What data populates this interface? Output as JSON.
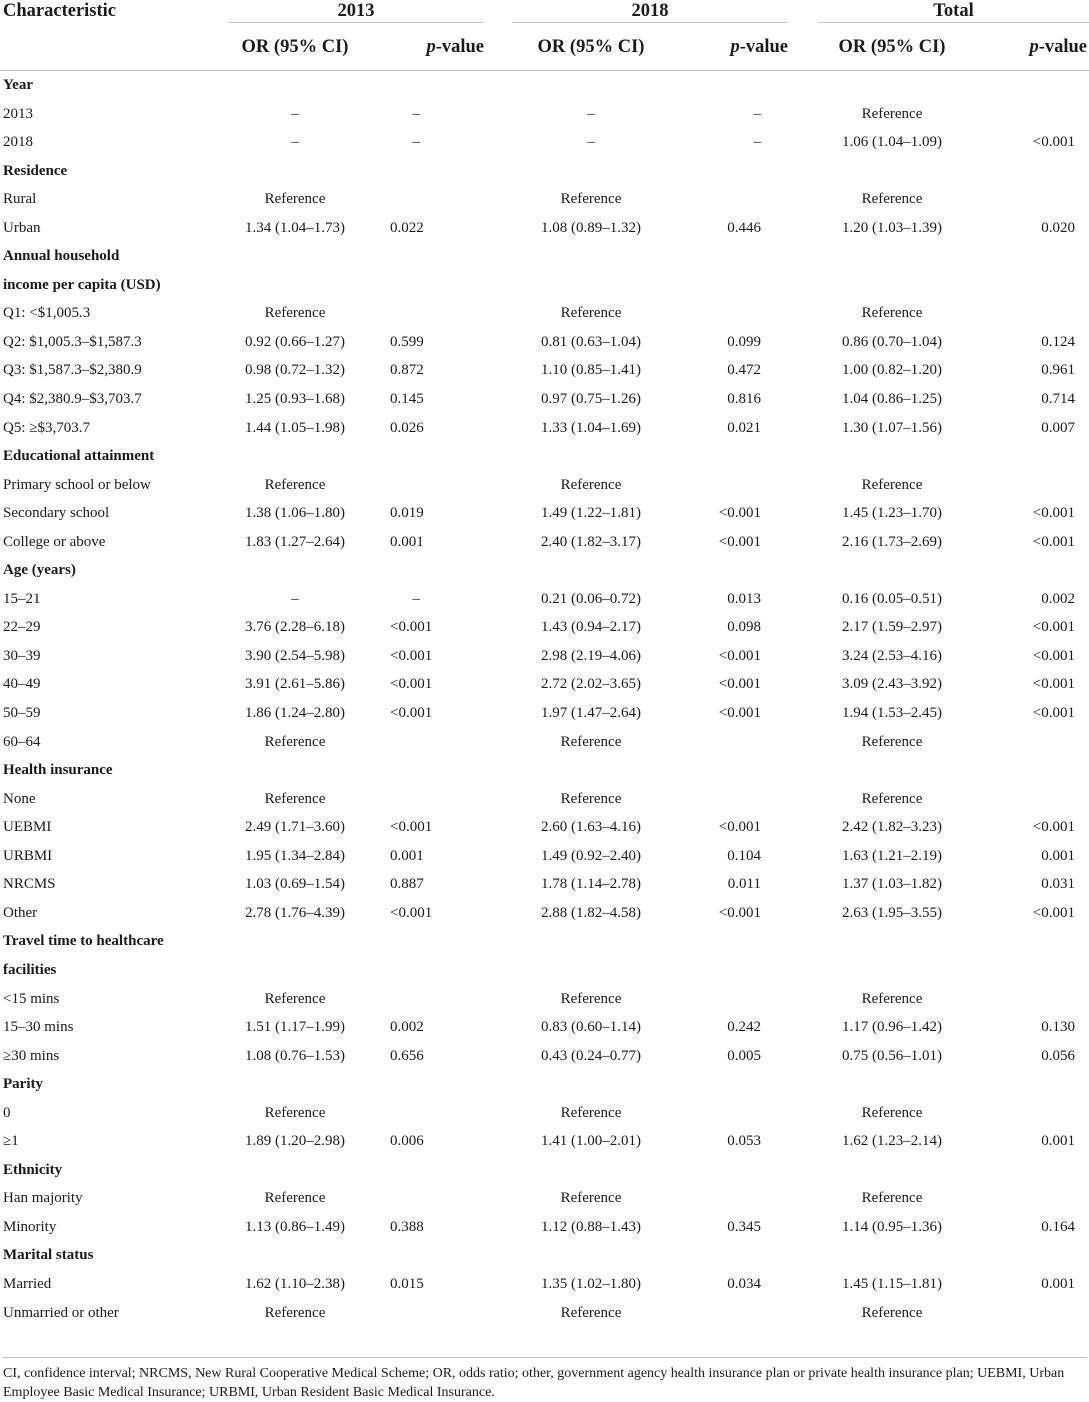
{
  "table": {
    "header": {
      "characteristic": "Characteristic",
      "groups": [
        "2013",
        "2018",
        "Total"
      ],
      "or_label": "OR (95% CI)",
      "p_italic": "p",
      "p_suffix": "-value"
    },
    "rows": [
      {
        "type": "section",
        "label": "Year"
      },
      {
        "label": "2013",
        "v": [
          "–",
          "–",
          "–",
          "–",
          "Reference",
          ""
        ]
      },
      {
        "label": "2018",
        "v": [
          "–",
          "–",
          "–",
          "–",
          "1.06 (1.04–1.09)",
          "<0.001"
        ]
      },
      {
        "type": "section",
        "label": "Residence"
      },
      {
        "label": "Rural",
        "v": [
          "Reference",
          "",
          "Reference",
          "",
          "Reference",
          ""
        ]
      },
      {
        "label": "Urban",
        "v": [
          "1.34 (1.04–1.73)",
          "0.022",
          "1.08 (0.89–1.32)",
          "0.446",
          "1.20 (1.03–1.39)",
          "0.020"
        ]
      },
      {
        "type": "section",
        "label": "Annual household"
      },
      {
        "type": "section",
        "label": "income per capita (USD)"
      },
      {
        "label": "Q1: <$1,005.3",
        "v": [
          "Reference",
          "",
          "Reference",
          "",
          "Reference",
          ""
        ]
      },
      {
        "label": "Q2: $1,005.3–$1,587.3",
        "v": [
          "0.92 (0.66–1.27)",
          "0.599",
          "0.81 (0.63–1.04)",
          "0.099",
          "0.86 (0.70–1.04)",
          "0.124"
        ]
      },
      {
        "label": "Q3: $1,587.3–$2,380.9",
        "v": [
          "0.98 (0.72–1.32)",
          "0.872",
          "1.10 (0.85–1.41)",
          "0.472",
          "1.00 (0.82–1.20)",
          "0.961"
        ]
      },
      {
        "label": "Q4: $2,380.9–$3,703.7",
        "v": [
          "1.25 (0.93–1.68)",
          "0.145",
          "0.97 (0.75–1.26)",
          "0.816",
          "1.04 (0.86–1.25)",
          "0.714"
        ]
      },
      {
        "label": "Q5: ≥$3,703.7",
        "v": [
          "1.44 (1.05–1.98)",
          "0.026",
          "1.33 (1.04–1.69)",
          "0.021",
          "1.30 (1.07–1.56)",
          "0.007"
        ]
      },
      {
        "type": "section",
        "label": "Educational attainment"
      },
      {
        "label": "Primary school or below",
        "v": [
          "Reference",
          "",
          "Reference",
          "",
          "Reference",
          ""
        ]
      },
      {
        "label": "Secondary school",
        "v": [
          "1.38 (1.06–1.80)",
          "0.019",
          "1.49 (1.22–1.81)",
          "<0.001",
          "1.45 (1.23–1.70)",
          "<0.001"
        ]
      },
      {
        "label": "College or above",
        "v": [
          "1.83 (1.27–2.64)",
          "0.001",
          "2.40 (1.82–3.17)",
          "<0.001",
          "2.16 (1.73–2.69)",
          "<0.001"
        ]
      },
      {
        "type": "section",
        "label": "Age (years)"
      },
      {
        "label": "15–21",
        "v": [
          "–",
          "–",
          "0.21 (0.06–0.72)",
          "0.013",
          "0.16 (0.05–0.51)",
          "0.002"
        ]
      },
      {
        "label": "22–29",
        "v": [
          "3.76 (2.28–6.18)",
          "<0.001",
          "1.43 (0.94–2.17)",
          "0.098",
          "2.17 (1.59–2.97)",
          "<0.001"
        ]
      },
      {
        "label": "30–39",
        "v": [
          "3.90 (2.54–5.98)",
          "<0.001",
          "2.98 (2.19–4.06)",
          "<0.001",
          "3.24 (2.53–4.16)",
          "<0.001"
        ]
      },
      {
        "label": "40–49",
        "v": [
          "3.91 (2.61–5.86)",
          "<0.001",
          "2.72 (2.02–3.65)",
          "<0.001",
          "3.09 (2.43–3.92)",
          "<0.001"
        ]
      },
      {
        "label": "50–59",
        "v": [
          "1.86 (1.24–2.80)",
          "<0.001",
          "1.97 (1.47–2.64)",
          "<0.001",
          "1.94 (1.53–2.45)",
          "<0.001"
        ]
      },
      {
        "label": "60–64",
        "v": [
          "Reference",
          "",
          "Reference",
          "",
          "Reference",
          ""
        ]
      },
      {
        "type": "section",
        "label": "Health insurance"
      },
      {
        "label": "None",
        "v": [
          "Reference",
          "",
          "Reference",
          "",
          "Reference",
          ""
        ]
      },
      {
        "label": "UEBMI",
        "v": [
          "2.49 (1.71–3.60)",
          "<0.001",
          "2.60 (1.63–4.16)",
          "<0.001",
          "2.42 (1.82–3.23)",
          "<0.001"
        ]
      },
      {
        "label": "URBMI",
        "v": [
          "1.95 (1.34–2.84)",
          "0.001",
          "1.49 (0.92–2.40)",
          "0.104",
          "1.63 (1.21–2.19)",
          "0.001"
        ]
      },
      {
        "label": "NRCMS",
        "v": [
          "1.03 (0.69–1.54)",
          "0.887",
          "1.78 (1.14–2.78)",
          "0.011",
          "1.37 (1.03–1.82)",
          "0.031"
        ]
      },
      {
        "label": "Other",
        "v": [
          "2.78 (1.76–4.39)",
          "<0.001",
          "2.88 (1.82–4.58)",
          "<0.001",
          "2.63 (1.95–3.55)",
          "<0.001"
        ]
      },
      {
        "type": "section",
        "label": "Travel time to healthcare"
      },
      {
        "type": "section",
        "label": "facilities"
      },
      {
        "label": "<15 mins",
        "v": [
          "Reference",
          "",
          "Reference",
          "",
          "Reference",
          ""
        ]
      },
      {
        "label": "15–30 mins",
        "v": [
          "1.51 (1.17–1.99)",
          "0.002",
          "0.83 (0.60–1.14)",
          "0.242",
          "1.17 (0.96–1.42)",
          "0.130"
        ]
      },
      {
        "label": "≥30 mins",
        "v": [
          "1.08 (0.76–1.53)",
          "0.656",
          "0.43 (0.24–0.77)",
          "0.005",
          "0.75 (0.56–1.01)",
          "0.056"
        ]
      },
      {
        "type": "section",
        "label": "Parity"
      },
      {
        "label": "0",
        "v": [
          "Reference",
          "",
          "Reference",
          "",
          "Reference",
          ""
        ]
      },
      {
        "label": "≥1",
        "v": [
          "1.89 (1.20–2.98)",
          "0.006",
          "1.41 (1.00–2.01)",
          "0.053",
          "1.62 (1.23–2.14)",
          "0.001"
        ]
      },
      {
        "type": "section",
        "label": "Ethnicity"
      },
      {
        "label": "Han majority",
        "v": [
          "Reference",
          "",
          "Reference",
          "",
          "Reference",
          ""
        ]
      },
      {
        "label": "Minority",
        "v": [
          "1.13 (0.86–1.49)",
          "0.388",
          "1.12 (0.88–1.43)",
          "0.345",
          "1.14 (0.95–1.36)",
          "0.164"
        ]
      },
      {
        "type": "section",
        "label": "Marital status"
      },
      {
        "label": "Married",
        "v": [
          "1.62 (1.10–2.38)",
          "0.015",
          "1.35 (1.02–1.80)",
          "0.034",
          "1.45 (1.15–1.81)",
          "0.001"
        ]
      },
      {
        "label": "Unmarried or other",
        "v": [
          "Reference",
          "",
          "Reference",
          "",
          "Reference",
          ""
        ]
      }
    ],
    "footnote": "CI, confidence interval; NRCMS, New Rural Cooperative Medical Scheme; OR, odds ratio; other, government agency health insurance plan or private health insurance plan; UEBMI, Urban Employee Basic Medical Insurance; URBMI, Urban Resident Basic Medical Insurance."
  }
}
